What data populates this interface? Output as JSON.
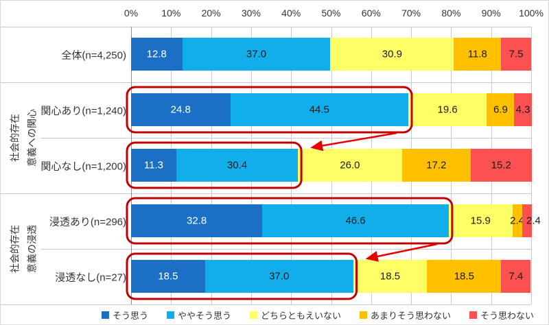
{
  "chart_data": {
    "type": "bar",
    "orientation": "horizontal",
    "stacked": true,
    "unit": "%",
    "x_axis": {
      "position": "top",
      "min": 0,
      "max": 100,
      "ticks": [
        "0%",
        "10%",
        "20%",
        "30%",
        "40%",
        "50%",
        "60%",
        "70%",
        "80%",
        "90%",
        "100%"
      ],
      "grid": true
    },
    "categories": [
      "全体(n=4,250)",
      "関心あり(n=1,240)",
      "関心なし(n=1,200)",
      "浸透あり(n=296)",
      "浸透なし(n=27)"
    ],
    "row_groups": [
      {
        "label_lines": [
          "社会的存在",
          "意義への関心"
        ],
        "rows": [
          1,
          2
        ]
      },
      {
        "label_lines": [
          "社会的存在",
          "意義の浸透"
        ],
        "rows": [
          3,
          4
        ]
      }
    ],
    "series": [
      {
        "name": "そう思う",
        "color": "#1B6FC4",
        "label_color": "#FFFFFF",
        "values": [
          12.8,
          24.8,
          11.3,
          32.8,
          18.5
        ]
      },
      {
        "name": "ややそう思う",
        "color": "#12AEEB",
        "label_color": "#1A1A1A",
        "values": [
          37.0,
          44.5,
          30.4,
          46.6,
          37.0
        ]
      },
      {
        "name": "どちらともえいない",
        "color": "#FFFF66",
        "label_color": "#1A1A1A",
        "values": [
          30.9,
          19.6,
          26.0,
          15.9,
          18.5
        ]
      },
      {
        "name": "あまりそう思わない",
        "color": "#FFC000",
        "label_color": "#1A1A1A",
        "values": [
          11.8,
          6.9,
          17.2,
          2.4,
          18.5
        ]
      },
      {
        "name": "そう思わない",
        "color": "#FB5151",
        "label_color": "#1A1A1A",
        "values": [
          7.5,
          4.3,
          15.2,
          2.4,
          7.4
        ]
      }
    ],
    "annotations": {
      "highlight_boxes": [
        {
          "row": 1,
          "series_span": [
            0,
            1
          ],
          "color": "#C00000"
        },
        {
          "row": 2,
          "series_span": [
            0,
            1
          ],
          "color": "#C00000"
        },
        {
          "row": 3,
          "series_span": [
            0,
            1
          ],
          "color": "#C00000"
        },
        {
          "row": 4,
          "series_span": [
            0,
            1
          ],
          "color": "#C00000"
        }
      ],
      "arrows": [
        {
          "from_row": 1,
          "to_row": 2,
          "color": "#E60000"
        },
        {
          "from_row": 3,
          "to_row": 4,
          "color": "#E60000"
        }
      ]
    },
    "legend": {
      "position": "bottom",
      "items": [
        "そう思う",
        "ややそう思う",
        "どちらともえいない",
        "あまりそう思わない",
        "そう思わない"
      ]
    }
  }
}
